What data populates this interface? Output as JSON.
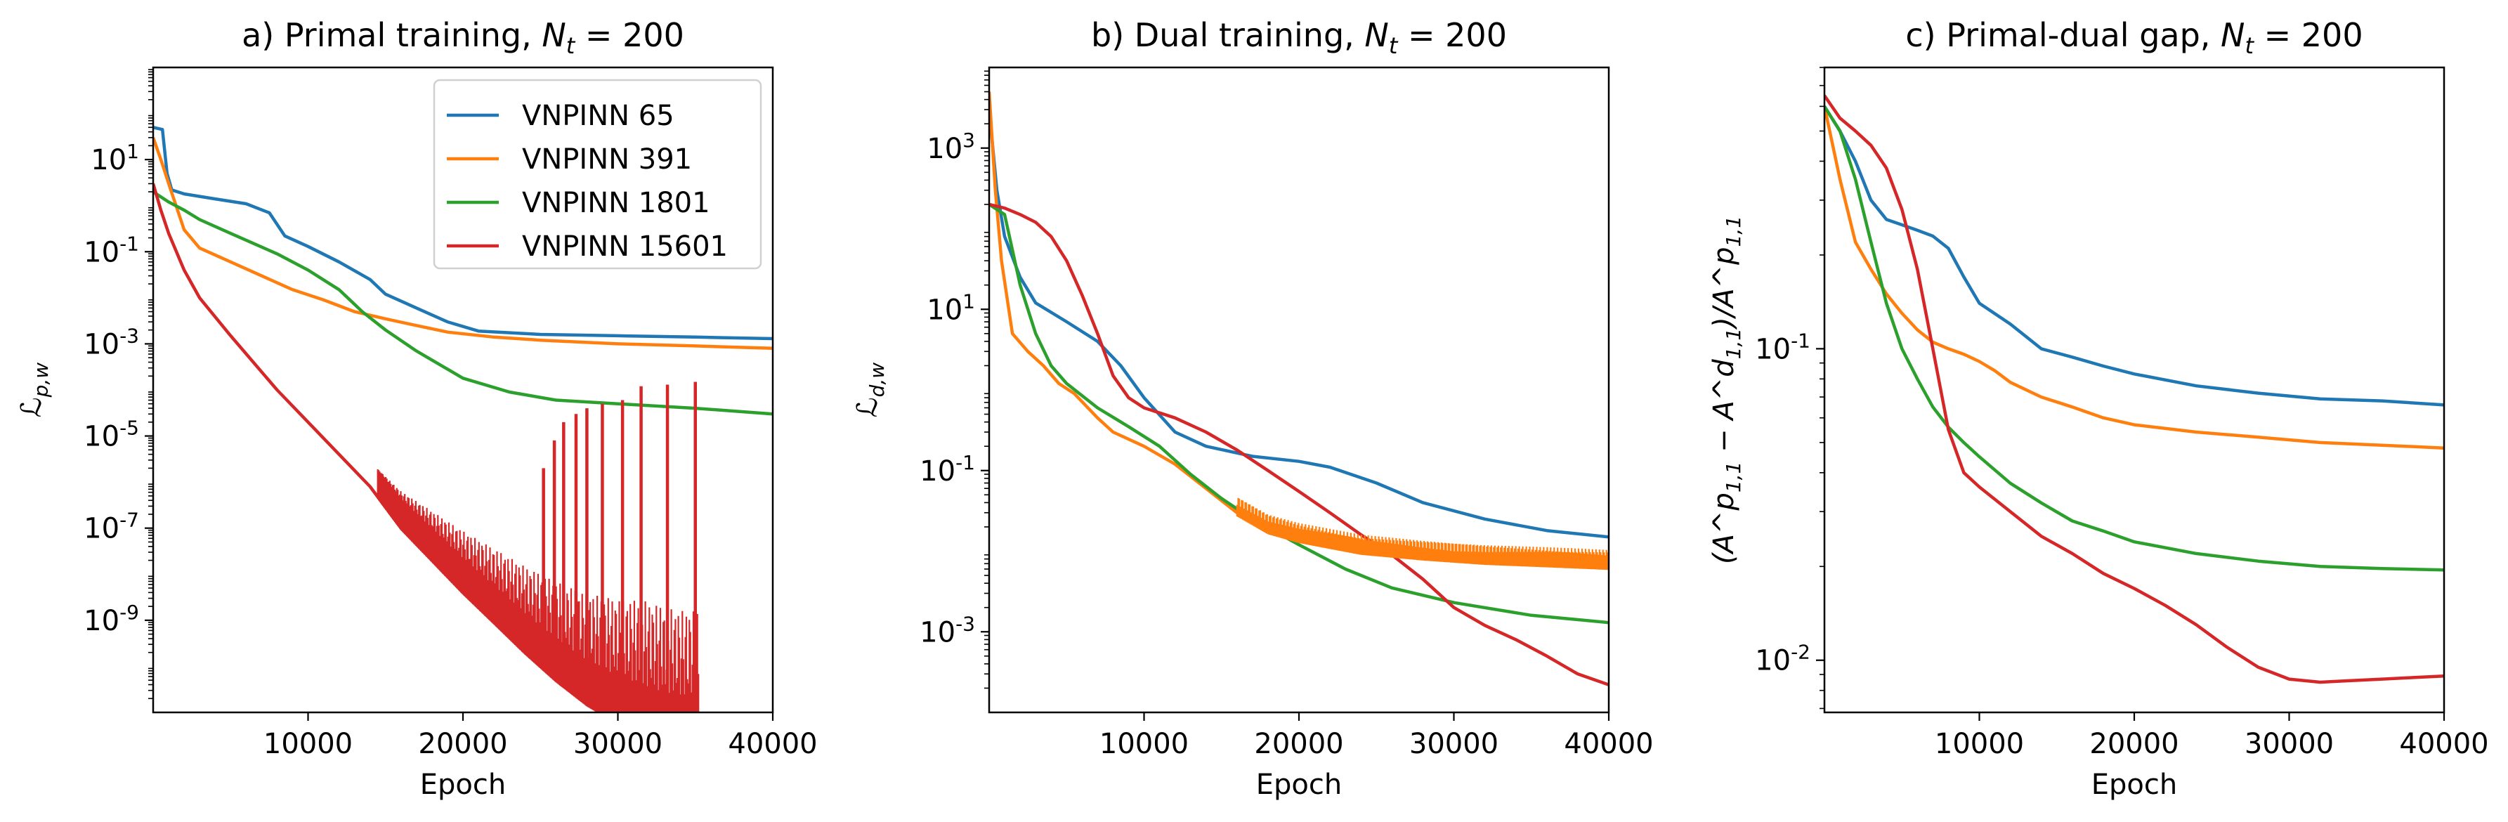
{
  "colors": {
    "VNPINN 65": "#1f77b4",
    "VNPINN 391": "#ff7f0e",
    "VNPINN 1801": "#2ca02c",
    "VNPINN 15601": "#d62728"
  },
  "chart_data": [
    {
      "type": "line",
      "title_prefix": "a) Primal training, ",
      "title_math": "N_t = 200",
      "xlabel": "Epoch",
      "ylabel": "ℒ_{p,w}",
      "yscale": "log",
      "xlim": [
        0,
        40000
      ],
      "ylim": [
        1e-11,
        1000.0
      ],
      "xticks": [
        10000,
        20000,
        30000,
        40000
      ],
      "yticks": [
        1e-09,
        1e-07,
        1e-05,
        0.001,
        0.1,
        10.0
      ],
      "ytick_labels": [
        "10^{-9}",
        "10^{-7}",
        "10^{-5}",
        "10^{-3}",
        "10^{-1}",
        "10^{1}"
      ],
      "legend": "top-right",
      "series": [
        {
          "name": "VNPINN 65",
          "x": [
            0,
            600,
            900,
            1200,
            2000,
            4000,
            6000,
            7500,
            8500,
            10000,
            12000,
            14000,
            15000,
            17000,
            19000,
            21000,
            25000,
            30000,
            35000,
            40000
          ],
          "y": [
            50,
            45,
            5,
            2.2,
            1.8,
            1.4,
            1.1,
            0.7,
            0.22,
            0.13,
            0.06,
            0.025,
            0.012,
            0.006,
            0.003,
            0.0019,
            0.0016,
            0.0015,
            0.0014,
            0.0013
          ]
        },
        {
          "name": "VNPINN 391",
          "x": [
            0,
            500,
            1000,
            2000,
            3000,
            5000,
            7000,
            9000,
            11000,
            13000,
            15000,
            17000,
            19000,
            22000,
            25000,
            30000,
            35000,
            40000
          ],
          "y": [
            30,
            10,
            3,
            0.3,
            0.12,
            0.06,
            0.03,
            0.015,
            0.009,
            0.005,
            0.0035,
            0.0025,
            0.0018,
            0.0014,
            0.0012,
            0.001,
            0.0009,
            0.0008
          ]
        },
        {
          "name": "VNPINN 1801",
          "x": [
            0,
            1000,
            2000,
            3000,
            5000,
            8000,
            10000,
            12000,
            13500,
            15000,
            17000,
            20000,
            23000,
            26000,
            30000,
            35000,
            40000
          ],
          "y": [
            2,
            1.2,
            0.8,
            0.5,
            0.25,
            0.09,
            0.04,
            0.015,
            0.005,
            0.002,
            0.0007,
            0.00018,
            9e-05,
            6e-05,
            5e-05,
            4e-05,
            3e-05
          ]
        },
        {
          "name": "VNPINN 15601",
          "x": [
            0,
            500,
            1000,
            1500,
            2000,
            3000,
            5000,
            8000,
            10000,
            12000,
            14000,
            16000,
            18000,
            20000,
            22000,
            24000,
            26000,
            28000,
            30000,
            32000,
            34000,
            35000,
            36000,
            40000
          ],
          "y": [
            3,
            0.8,
            0.25,
            0.1,
            0.04,
            0.01,
            0.0015,
            0.0001,
            2e-05,
            4e-06,
            8e-07,
            1e-07,
            2e-08,
            4e-09,
            9e-10,
            2e-10,
            5e-11,
            1.5e-11,
            6e-12,
            3e-12,
            2e-12,
            2e-12,
            2e-12,
            2e-12
          ]
        }
      ],
      "noise_band": {
        "series": "VNPINN 15601",
        "x_from": 14500,
        "x_to": 35200,
        "spikes": [
          25200,
          25900,
          26500,
          27300,
          28000,
          29000,
          30300,
          31500,
          33200,
          35000
        ],
        "spike_top": [
          2e-06,
          8e-06,
          2e-05,
          3e-05,
          4e-05,
          5e-05,
          6e-05,
          0.00012,
          0.00013,
          0.00015
        ]
      }
    },
    {
      "type": "line",
      "title_prefix": "b) Dual training, ",
      "title_math": "N_t = 200",
      "xlabel": "Epoch",
      "ylabel": "ℒ_{d,w}",
      "yscale": "log",
      "xlim": [
        0,
        40000
      ],
      "ylim": [
        0.0001,
        10000
      ],
      "xticks": [
        10000,
        20000,
        30000,
        40000
      ],
      "yticks": [
        0.001,
        0.1,
        10,
        1000
      ],
      "ytick_labels": [
        "10^{-3}",
        "10^{-1}",
        "10^{1}",
        "10^{3}"
      ],
      "series": [
        {
          "name": "VNPINN 65",
          "x": [
            0,
            500,
            1000,
            2000,
            3000,
            5000,
            7000,
            8500,
            10000,
            12000,
            14000,
            17000,
            20000,
            22000,
            25000,
            28000,
            32000,
            36000,
            40000
          ],
          "y": [
            3000,
            300,
            80,
            25,
            12,
            7,
            4,
            2,
            0.8,
            0.3,
            0.2,
            0.15,
            0.13,
            0.11,
            0.07,
            0.04,
            0.025,
            0.018,
            0.015
          ]
        },
        {
          "name": "VNPINN 391",
          "x": [
            0,
            400,
            800,
            1500,
            2500,
            3500,
            4500,
            5500,
            7000,
            8000,
            10000,
            12000,
            14000,
            16000,
            18000,
            20000,
            24000,
            28000,
            32000,
            36000,
            40000
          ],
          "y": [
            5000,
            300,
            40,
            5,
            3,
            2,
            1.2,
            0.9,
            0.45,
            0.3,
            0.2,
            0.12,
            0.06,
            0.03,
            0.018,
            0.014,
            0.01,
            0.0085,
            0.0075,
            0.007,
            0.0065
          ]
        },
        {
          "name": "VNPINN 1801",
          "x": [
            0,
            1000,
            2000,
            3000,
            4000,
            5000,
            7000,
            9000,
            11000,
            13000,
            15000,
            17000,
            20000,
            23000,
            26000,
            30000,
            35000,
            40000
          ],
          "y": [
            200,
            150,
            20,
            5,
            2,
            1.2,
            0.6,
            0.35,
            0.2,
            0.09,
            0.045,
            0.025,
            0.012,
            0.006,
            0.0035,
            0.0023,
            0.0016,
            0.0013
          ]
        },
        {
          "name": "VNPINN 15601",
          "x": [
            0,
            1000,
            2000,
            3000,
            4000,
            5000,
            6000,
            7000,
            8000,
            9000,
            10000,
            12000,
            14000,
            16000,
            18000,
            20000,
            22000,
            24000,
            26000,
            28000,
            30000,
            32000,
            34000,
            36000,
            38000,
            40000
          ],
          "y": [
            200,
            180,
            150,
            120,
            80,
            40,
            15,
            5,
            1.5,
            0.8,
            0.6,
            0.45,
            0.3,
            0.18,
            0.1,
            0.055,
            0.03,
            0.016,
            0.009,
            0.0045,
            0.002,
            0.0012,
            0.0008,
            0.0005,
            0.0003,
            0.00022
          ]
        }
      ],
      "noise_band": {
        "series": "VNPINN 391",
        "x_from": 16000,
        "x_to": 40000
      }
    },
    {
      "type": "line",
      "title_prefix": "c) Primal-dual gap, ",
      "title_math": "N_t = 200",
      "xlabel": "Epoch",
      "ylabel": "(A^p_{1,1} − A^d_{1,1})/A^p_{1,1}",
      "yscale": "log",
      "xlim": [
        0,
        40000
      ],
      "ylim": [
        0.0068,
        0.8
      ],
      "xticks": [
        10000,
        20000,
        30000,
        40000
      ],
      "yticks": [
        0.01,
        0.1
      ],
      "ytick_labels": [
        "10^{-2}",
        "10^{-1}"
      ],
      "series": [
        {
          "name": "VNPINN 65",
          "x": [
            0,
            1000,
            2000,
            3000,
            4000,
            5000,
            6000,
            7000,
            8000,
            9000,
            10000,
            12000,
            14000,
            16000,
            18000,
            20000,
            24000,
            28000,
            32000,
            36000,
            40000
          ],
          "y": [
            0.6,
            0.5,
            0.4,
            0.3,
            0.26,
            0.25,
            0.24,
            0.23,
            0.21,
            0.17,
            0.14,
            0.12,
            0.1,
            0.094,
            0.088,
            0.083,
            0.076,
            0.072,
            0.069,
            0.068,
            0.066
          ]
        },
        {
          "name": "VNPINN 391",
          "x": [
            0,
            1000,
            2000,
            3000,
            4000,
            5000,
            6000,
            7000,
            8000,
            9000,
            10000,
            11000,
            12000,
            14000,
            16000,
            18000,
            20000,
            24000,
            28000,
            32000,
            36000,
            40000
          ],
          "y": [
            0.6,
            0.35,
            0.22,
            0.18,
            0.15,
            0.13,
            0.115,
            0.105,
            0.1,
            0.096,
            0.091,
            0.085,
            0.078,
            0.07,
            0.065,
            0.06,
            0.057,
            0.054,
            0.052,
            0.05,
            0.049,
            0.048
          ]
        },
        {
          "name": "VNPINN 1801",
          "x": [
            0,
            1000,
            2000,
            3000,
            4000,
            5000,
            6000,
            7000,
            8000,
            9000,
            10000,
            12000,
            14000,
            16000,
            18000,
            20000,
            24000,
            28000,
            32000,
            36000,
            40000
          ],
          "y": [
            0.6,
            0.5,
            0.35,
            0.22,
            0.14,
            0.1,
            0.08,
            0.065,
            0.056,
            0.05,
            0.045,
            0.037,
            0.032,
            0.028,
            0.026,
            0.024,
            0.022,
            0.0208,
            0.02,
            0.0197,
            0.0195
          ]
        },
        {
          "name": "VNPINN 15601",
          "x": [
            0,
            1000,
            2000,
            3000,
            4000,
            5000,
            6000,
            7000,
            8000,
            9000,
            10000,
            12000,
            14000,
            16000,
            18000,
            20000,
            22000,
            24000,
            26000,
            28000,
            30000,
            32000,
            34000,
            36000,
            38000,
            40000
          ],
          "y": [
            0.65,
            0.55,
            0.5,
            0.45,
            0.38,
            0.28,
            0.18,
            0.1,
            0.055,
            0.04,
            0.036,
            0.03,
            0.025,
            0.022,
            0.019,
            0.017,
            0.015,
            0.013,
            0.011,
            0.0095,
            0.0087,
            0.0085,
            0.0086,
            0.0087,
            0.0088,
            0.0089
          ]
        }
      ]
    }
  ]
}
